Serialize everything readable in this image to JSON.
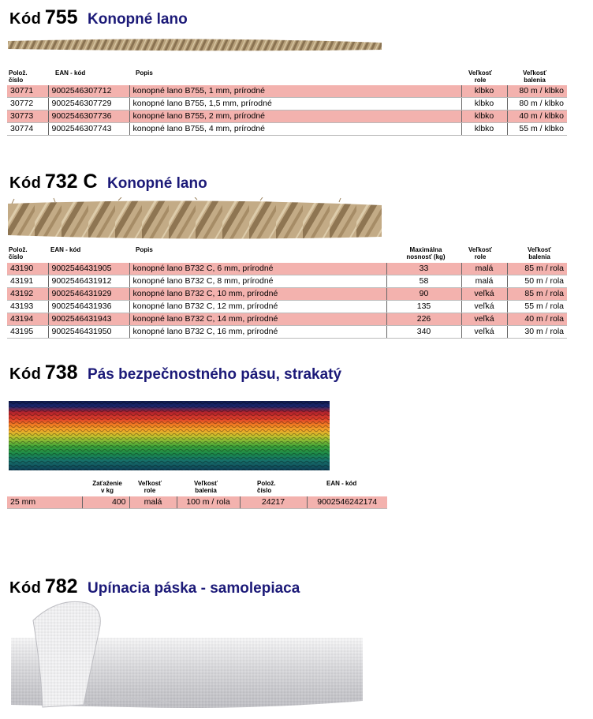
{
  "s755": {
    "kod": "Kód",
    "num": "755",
    "name": "Konopné lano",
    "headers": {
      "poloz": [
        "Polož.",
        "číslo"
      ],
      "ean": "EAN - kód",
      "popis": "Popis",
      "rola": [
        "Veľkosť",
        "role"
      ],
      "balenie": [
        "Veľkosť",
        "balenia"
      ]
    },
    "rows": [
      [
        "30771",
        "9002546307712",
        "konopné lano B755, 1 mm, prírodné",
        "klbko",
        "80 m / klbko"
      ],
      [
        "30772",
        "9002546307729",
        "konopné lano B755, 1,5 mm, prírodné",
        "klbko",
        "80 m / klbko"
      ],
      [
        "30773",
        "9002546307736",
        "konopné lano B755, 2 mm, prírodné",
        "klbko",
        "40 m / klbko"
      ],
      [
        "30774",
        "9002546307743",
        "konopné lano B755, 4 mm, prírodné",
        "klbko",
        "55 m / klbko"
      ]
    ]
  },
  "s732": {
    "kod": "Kód",
    "num": "732 C",
    "name": "Konopné lano",
    "headers": {
      "poloz": [
        "Polož.",
        "číslo"
      ],
      "ean": "EAN - kód",
      "popis": "Popis",
      "nosnost": [
        "Maximálna",
        "nosnosť (kg)"
      ],
      "rola": [
        "Veľkosť",
        "role"
      ],
      "balenie": [
        "Veľkosť",
        "balenia"
      ]
    },
    "rows": [
      [
        "43190",
        "9002546431905",
        "konopné lano B732 C, 6 mm, prírodné",
        "33",
        "malá",
        "85 m / rola"
      ],
      [
        "43191",
        "9002546431912",
        "konopné lano B732 C, 8 mm, prírodné",
        "58",
        "malá",
        "50 m / rola"
      ],
      [
        "43192",
        "9002546431929",
        "konopné lano B732 C, 10 mm, prírodné",
        "90",
        "veľká",
        "85 m / rola"
      ],
      [
        "43193",
        "9002546431936",
        "konopné lano B732 C, 12 mm, prírodné",
        "135",
        "veľká",
        "55 m / rola"
      ],
      [
        "43194",
        "9002546431943",
        "konopné lano B732 C, 14 mm, prírodné",
        "226",
        "veľká",
        "40 m / rola"
      ],
      [
        "43195",
        "9002546431950",
        "konopné lano B732 C, 16 mm, prírodné",
        "340",
        "veľká",
        "30 m / rola"
      ]
    ]
  },
  "s738": {
    "kod": "Kód",
    "num": "738",
    "name": "Pás bezpečnostného pásu, strakatý",
    "headers": {
      "zataz": [
        "Zaťaženie",
        "v kg"
      ],
      "rola": [
        "Veľkosť",
        "role"
      ],
      "balenie": [
        "Veľkosť",
        "balenia"
      ],
      "poloz": [
        "Polož.",
        "číslo"
      ],
      "ean": "EAN - kód"
    },
    "row": [
      "25 mm",
      "400",
      "malá",
      "100 m / rola",
      "24217",
      "9002546242174"
    ]
  },
  "s782": {
    "kod": "Kód",
    "num": "782",
    "name": "Upínacia páska - samolepiaca"
  },
  "colors": {
    "heading_blue": "#1c1a78",
    "row_pink": "#f3b2ae"
  }
}
